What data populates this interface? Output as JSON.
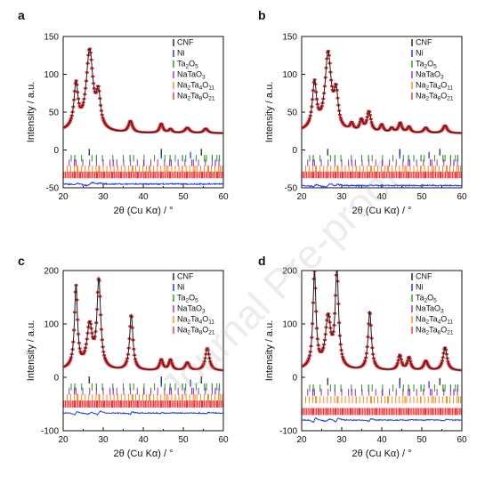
{
  "colors": {
    "observed": "#e8323a",
    "calculated": "#1a1a1a",
    "difference": "#1f3ff0",
    "CNF": "#1a1a1a",
    "Ni": "#1f2dcf",
    "Ta2O5": "#1f9a1f",
    "NaTaO3": "#9b30cc",
    "Na2Ta4O11": "#f28c1e",
    "Na2Ta8O21": "#e8323a"
  },
  "legend_items": [
    {
      "key": "CNF",
      "base": "CNF",
      "parts": [
        {
          "t": "CNF",
          "sub": false
        }
      ]
    },
    {
      "key": "Ni",
      "base": "Ni",
      "parts": [
        {
          "t": "Ni",
          "sub": false
        }
      ]
    },
    {
      "key": "Ta2O5",
      "base": "Ta2O5",
      "parts": [
        {
          "t": "Ta",
          "sub": false
        },
        {
          "t": "2",
          "sub": true
        },
        {
          "t": "O",
          "sub": false
        },
        {
          "t": "5",
          "sub": true
        }
      ]
    },
    {
      "key": "NaTaO3",
      "base": "NaTaO3",
      "parts": [
        {
          "t": "NaTaO",
          "sub": false
        },
        {
          "t": "3",
          "sub": true
        }
      ]
    },
    {
      "key": "Na2Ta4O11",
      "base": "Na2Ta4O11",
      "parts": [
        {
          "t": "Na",
          "sub": false
        },
        {
          "t": "2",
          "sub": true
        },
        {
          "t": "Ta",
          "sub": false
        },
        {
          "t": "4",
          "sub": true
        },
        {
          "t": "O",
          "sub": false
        },
        {
          "t": "11",
          "sub": true
        }
      ]
    },
    {
      "key": "Na2Ta8O21",
      "base": "Na2Ta8O21",
      "parts": [
        {
          "t": "Na",
          "sub": false
        },
        {
          "t": "2",
          "sub": true
        },
        {
          "t": "Ta",
          "sub": false
        },
        {
          "t": "8",
          "sub": true
        },
        {
          "t": "O",
          "sub": false
        },
        {
          "t": "21",
          "sub": true
        }
      ]
    }
  ],
  "phase_ticks": {
    "CNF": [
      26.5,
      44.5,
      54.5
    ],
    "Ni": [
      44.5,
      51.8
    ],
    "Ta2O5": [
      22.9,
      28.3,
      36.7,
      46.7,
      49.8,
      55.3,
      57.2,
      59.0
    ],
    "NaTaO3": [
      22.8,
      32.5,
      40.1,
      46.6,
      52.5,
      58.0
    ],
    "Na2Ta4O11": [
      23.5,
      28.9,
      33.6,
      37.4,
      41.5,
      45.8,
      49.7,
      52.9,
      56.3,
      59.2
    ],
    "Na2Ta8O21": [
      22.8,
      24.3,
      26.4,
      28.4,
      30.1,
      32.2,
      34.3,
      36.6,
      38.6,
      40.5,
      42.6,
      44.6,
      46.7,
      48.9,
      50.8,
      52.7,
      54.7,
      56.7,
      58.5
    ]
  },
  "watermark": "Journal Pre-proof",
  "chart_data": [
    {
      "type": "scatter",
      "panel_label": "a",
      "xlabel": "2θ (Cu Kα) / °",
      "ylabel": "Intensity / a.u.",
      "xlim": [
        20,
        60
      ],
      "ylim": [
        -50,
        150
      ],
      "xticks": [
        20,
        30,
        40,
        50,
        60
      ],
      "yticks": [
        -50,
        0,
        50,
        100,
        150
      ],
      "background": 22,
      "difference_offset": -45,
      "peaks": [
        {
          "x": 23.2,
          "h": 57,
          "w": 0.6
        },
        {
          "x": 26.6,
          "h": 104,
          "w": 1.0
        },
        {
          "x": 28.8,
          "h": 42,
          "w": 0.6
        },
        {
          "x": 36.8,
          "h": 15,
          "w": 0.6
        },
        {
          "x": 44.5,
          "h": 12,
          "w": 0.5
        },
        {
          "x": 46.8,
          "h": 5,
          "w": 0.5
        },
        {
          "x": 51.0,
          "h": 7,
          "w": 0.7
        },
        {
          "x": 55.6,
          "h": 6,
          "w": 0.6
        }
      ],
      "reflection_rows": {
        "CNF": -3,
        "Ni": -7,
        "Ta2O5": -11,
        "NaTaO3": -17,
        "Na2Ta4O11": -25,
        "Na2Ta8O21": -33
      },
      "grid": false,
      "legend_position": "top-right"
    },
    {
      "type": "scatter",
      "panel_label": "b",
      "xlabel": "2θ (Cu Kα) / °",
      "ylabel": "Intensity / a.u.",
      "xlim": [
        20,
        60
      ],
      "ylim": [
        -50,
        150
      ],
      "xticks": [
        20,
        30,
        40,
        50,
        60
      ],
      "yticks": [
        -50,
        0,
        50,
        100,
        150
      ],
      "background": 22,
      "difference_offset": -47,
      "peaks": [
        {
          "x": 23.2,
          "h": 60,
          "w": 0.6
        },
        {
          "x": 26.6,
          "h": 100,
          "w": 0.9
        },
        {
          "x": 28.6,
          "h": 45,
          "w": 0.6
        },
        {
          "x": 32.5,
          "h": 10,
          "w": 0.5
        },
        {
          "x": 34.9,
          "h": 15,
          "w": 0.5
        },
        {
          "x": 36.8,
          "h": 27,
          "w": 0.6
        },
        {
          "x": 40.0,
          "h": 10,
          "w": 0.5
        },
        {
          "x": 42.5,
          "h": 6,
          "w": 0.5
        },
        {
          "x": 44.6,
          "h": 13,
          "w": 0.5
        },
        {
          "x": 46.8,
          "h": 8,
          "w": 0.5
        },
        {
          "x": 51.0,
          "h": 7,
          "w": 0.6
        },
        {
          "x": 55.8,
          "h": 10,
          "w": 0.6
        }
      ],
      "reflection_rows": {
        "CNF": -3,
        "Ni": -7,
        "Ta2O5": -11,
        "NaTaO3": -17,
        "Na2Ta4O11": -25,
        "Na2Ta8O21": -33
      },
      "grid": false,
      "legend_position": "top-right"
    },
    {
      "type": "scatter",
      "panel_label": "c",
      "xlabel": "2θ (Cu Kα) / °",
      "ylabel": "Intensity / a.u.",
      "xlim": [
        20,
        60
      ],
      "ylim": [
        -100,
        200
      ],
      "xticks": [
        20,
        30,
        40,
        50,
        60
      ],
      "yticks": [
        -100,
        0,
        100,
        200
      ],
      "background": 12,
      "difference_offset": -67,
      "peaks": [
        {
          "x": 23.2,
          "h": 152,
          "w": 0.45
        },
        {
          "x": 26.6,
          "h": 78,
          "w": 0.8
        },
        {
          "x": 28.9,
          "h": 163,
          "w": 0.55
        },
        {
          "x": 37.0,
          "h": 104,
          "w": 0.5
        },
        {
          "x": 44.5,
          "h": 20,
          "w": 0.5
        },
        {
          "x": 46.8,
          "h": 20,
          "w": 0.5
        },
        {
          "x": 51.0,
          "h": 15,
          "w": 0.6
        },
        {
          "x": 56.0,
          "h": 42,
          "w": 0.6
        }
      ],
      "reflection_rows": {
        "CNF": -5,
        "Ni": -11,
        "Ta2O5": -18,
        "NaTaO3": -26,
        "Na2Ta4O11": -38,
        "Na2Ta8O21": -50
      },
      "grid": false,
      "legend_position": "top-right"
    },
    {
      "type": "scatter",
      "panel_label": "d",
      "xlabel": "2θ (Cu Kα) / °",
      "ylabel": "Intensity / a.u.",
      "xlim": [
        20,
        60
      ],
      "ylim": [
        -100,
        200
      ],
      "xticks": [
        20,
        30,
        40,
        50,
        60
      ],
      "yticks": [
        -100,
        0,
        100,
        200
      ],
      "background": 12,
      "difference_offset": -80,
      "peaks": [
        {
          "x": 23.2,
          "h": 178,
          "w": 0.45
        },
        {
          "x": 26.6,
          "h": 92,
          "w": 0.8
        },
        {
          "x": 28.8,
          "h": 180,
          "w": 0.5
        },
        {
          "x": 37.0,
          "h": 110,
          "w": 0.5
        },
        {
          "x": 44.5,
          "h": 28,
          "w": 0.5
        },
        {
          "x": 46.8,
          "h": 24,
          "w": 0.5
        },
        {
          "x": 51.0,
          "h": 18,
          "w": 0.6
        },
        {
          "x": 55.8,
          "h": 43,
          "w": 0.6
        }
      ],
      "reflection_rows": {
        "CNF": -8,
        "Ni": -14,
        "Ta2O5": -20,
        "NaTaO3": -28,
        "Na2Ta4O11": -42,
        "Na2Ta8O21": -64
      },
      "grid": false,
      "legend_position": "top-right"
    }
  ]
}
